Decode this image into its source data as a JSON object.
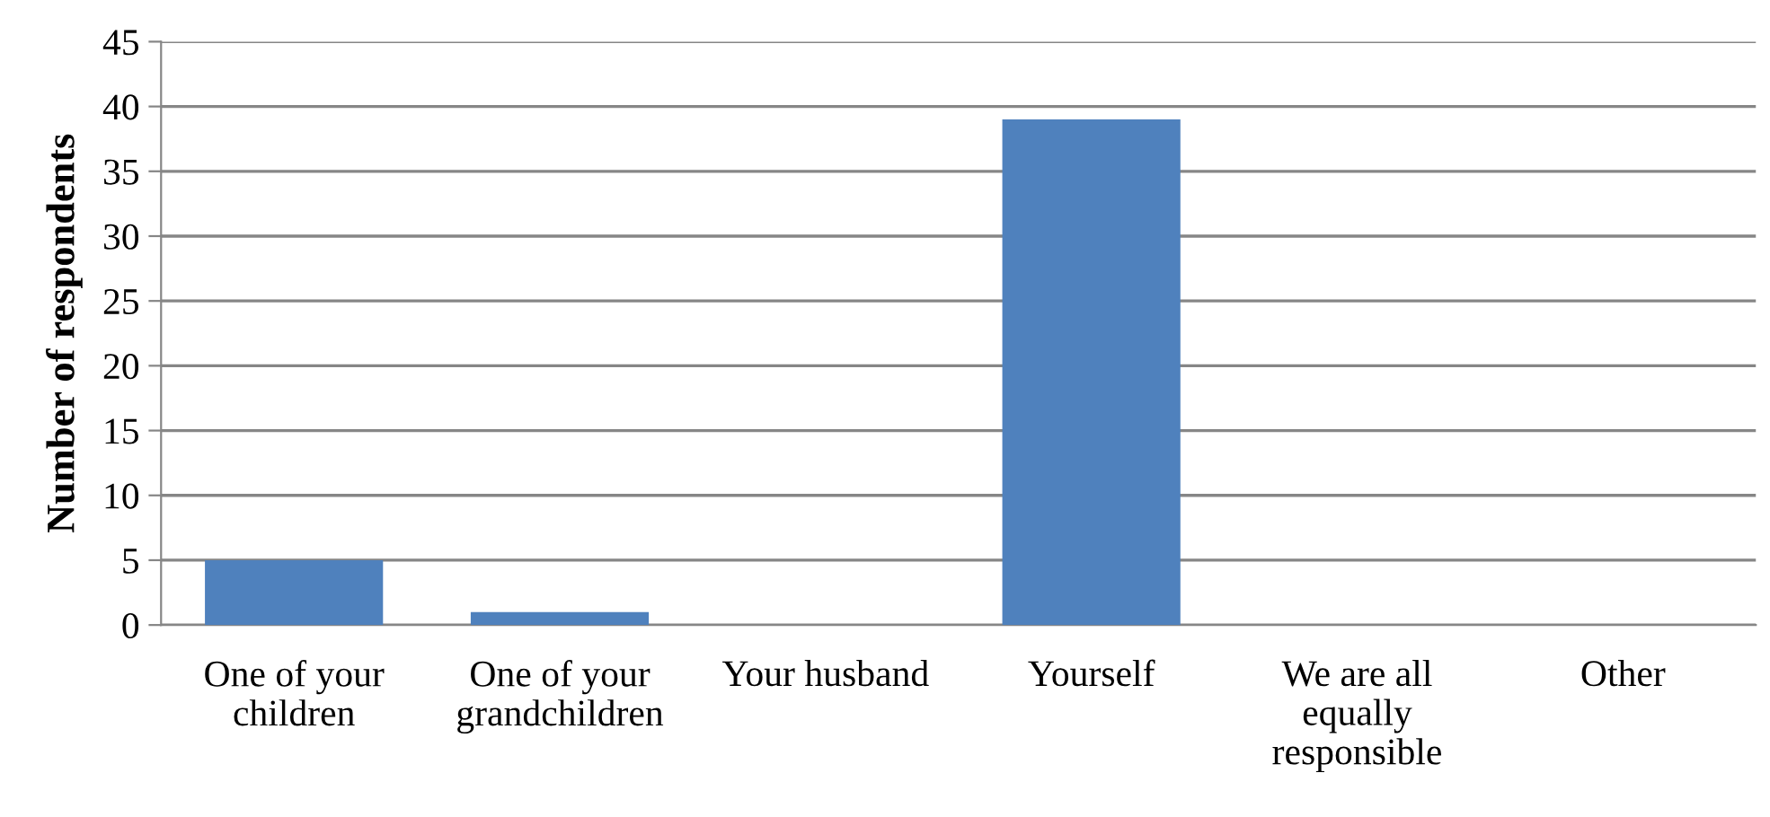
{
  "chart_data": {
    "type": "bar",
    "ylabel": "Number of respondents",
    "categories": [
      "One of your children",
      "One of your grandchildren",
      "Your husband",
      "Yourself",
      "We are all equally responsible",
      "Other"
    ],
    "values": [
      5,
      1,
      0,
      39,
      0,
      0
    ],
    "color": "#4f81bd",
    "ylim": [
      0,
      45
    ],
    "yticks": [
      0,
      5,
      10,
      15,
      20,
      25,
      30,
      35,
      40,
      45
    ],
    "grid": "y"
  }
}
